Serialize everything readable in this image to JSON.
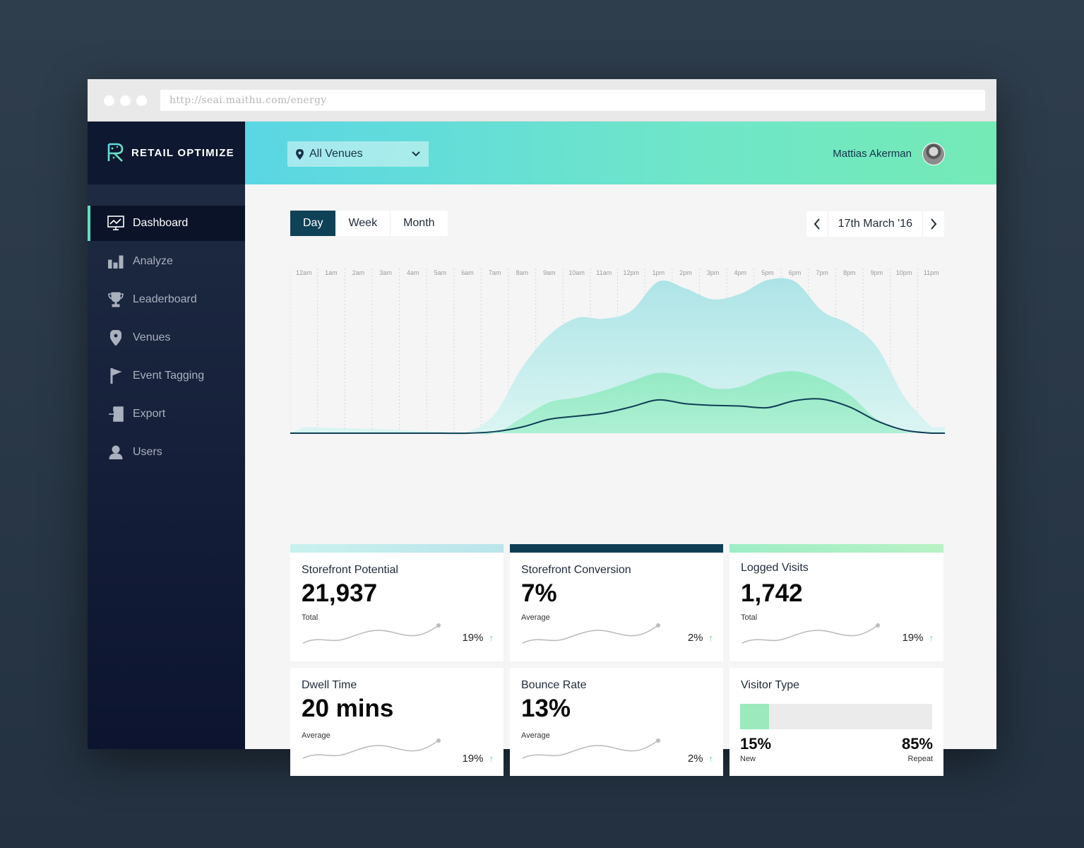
{
  "browser": {
    "url": "http://seai.maithu.com/energy"
  },
  "brand": {
    "name": "RETAIL OPTIMIZE",
    "accent": "#5fe0c2"
  },
  "sidebar": {
    "items": [
      {
        "label": "Dashboard",
        "icon": "monitor-chart-icon",
        "active": true
      },
      {
        "label": "Analyze",
        "icon": "bar-chart-icon"
      },
      {
        "label": "Leaderboard",
        "icon": "trophy-icon"
      },
      {
        "label": "Venues",
        "icon": "location-pin-icon"
      },
      {
        "label": "Event Tagging",
        "icon": "flag-icon"
      },
      {
        "label": "Export",
        "icon": "export-icon"
      },
      {
        "label": "Users",
        "icon": "user-icon"
      }
    ]
  },
  "header": {
    "venue_select": "All Venues",
    "user_name": "Mattias Akerman"
  },
  "toolbar": {
    "tabs": [
      "Day",
      "Week",
      "Month"
    ],
    "active_tab": "Day",
    "date": "17th March '16"
  },
  "chart_data": {
    "type": "area",
    "x": [
      "12am",
      "1am",
      "2am",
      "3am",
      "4am",
      "5am",
      "6am",
      "7am",
      "8am",
      "9am",
      "10am",
      "11am",
      "12pm",
      "1pm",
      "2pm",
      "3pm",
      "4pm",
      "5pm",
      "6pm",
      "7pm",
      "8pm",
      "9pm",
      "10pm",
      "11pm"
    ],
    "series": [
      {
        "values": [
          8,
          7,
          6,
          5,
          3,
          2,
          2,
          25,
          85,
          127,
          149,
          148,
          158,
          196,
          187,
          173,
          180,
          198,
          196,
          158,
          141,
          112,
          48,
          8
        ]
      },
      {
        "values": [
          0,
          0,
          0,
          0,
          0,
          0,
          0,
          0,
          20,
          40,
          46,
          55,
          67,
          78,
          73,
          58,
          60,
          75,
          80,
          70,
          50,
          18,
          2,
          0
        ]
      },
      {
        "values": [
          0,
          0,
          0,
          0,
          0,
          0,
          0,
          2,
          8,
          18,
          22,
          26,
          34,
          43,
          38,
          36,
          35,
          33,
          42,
          44,
          34,
          16,
          4,
          0
        ]
      }
    ],
    "colors": [
      "#bdebed",
      "#8cebc2",
      "#0f3f55"
    ]
  },
  "cards": [
    {
      "title": "Storefront Potential",
      "value": "21,937",
      "sub": "Total",
      "pct": "19%",
      "bar_color": "#bfe9ea"
    },
    {
      "title": "Storefront Conversion",
      "value": "7%",
      "sub": "Average",
      "pct": "2%",
      "bar_color": "#0f3f55"
    },
    {
      "title": "Logged Visits",
      "value": "1,742",
      "sub": "Total",
      "pct": "19%",
      "bar_color": "#a8efc7"
    },
    {
      "title": "Dwell Time",
      "value": "20 mins",
      "sub": "Average",
      "pct": "19%"
    },
    {
      "title": "Bounce Rate",
      "value": "13%",
      "sub": "Average",
      "pct": "2%"
    }
  ],
  "visitor_type": {
    "title": "Visitor Type",
    "new_pct": "15%",
    "new_label": "New",
    "repeat_pct": "85%",
    "repeat_label": "Repeat",
    "new_fraction": 0.15
  }
}
